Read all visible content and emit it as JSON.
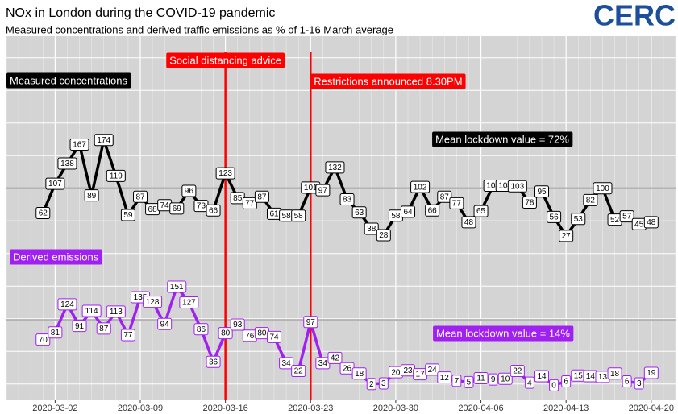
{
  "chart_data": {
    "type": "line",
    "title": "NOx in London during the COVID-19 pandemic",
    "subtitle": "Measured concentrations and derived traffic emissions as % of 1-16 March average",
    "logo": "CERC",
    "x": [
      "2020-03-01",
      "2020-03-02",
      "2020-03-03",
      "2020-03-04",
      "2020-03-05",
      "2020-03-06",
      "2020-03-07",
      "2020-03-08",
      "2020-03-09",
      "2020-03-10",
      "2020-03-11",
      "2020-03-12",
      "2020-03-13",
      "2020-03-14",
      "2020-03-15",
      "2020-03-16",
      "2020-03-17",
      "2020-03-18",
      "2020-03-19",
      "2020-03-20",
      "2020-03-21",
      "2020-03-22",
      "2020-03-23",
      "2020-03-24",
      "2020-03-25",
      "2020-03-26",
      "2020-03-27",
      "2020-03-28",
      "2020-03-29",
      "2020-03-30",
      "2020-03-31",
      "2020-04-01",
      "2020-04-02",
      "2020-04-03",
      "2020-04-04",
      "2020-04-05",
      "2020-04-06",
      "2020-04-07",
      "2020-04-08",
      "2020-04-09",
      "2020-04-10",
      "2020-04-11",
      "2020-04-12",
      "2020-04-13",
      "2020-04-14",
      "2020-04-15",
      "2020-04-16",
      "2020-04-17",
      "2020-04-18",
      "2020-04-19",
      "2020-04-20"
    ],
    "xlim": [
      "2020-02-27",
      "2020-04-22"
    ],
    "xticks": [
      "2020-03-02",
      "2020-03-09",
      "2020-03-16",
      "2020-03-23",
      "2020-03-30",
      "2020-04-06",
      "2020-04-13",
      "2020-04-20"
    ],
    "ylim": [
      -225,
      333
    ],
    "y2lim": [
      -23,
      535
    ],
    "yticks": [
      -200,
      -150,
      -100,
      -50,
      0,
      50,
      100,
      150,
      200,
      250,
      300
    ],
    "reference_line": 100,
    "grid": true,
    "series": [
      {
        "name": "Measured concentrations",
        "color": "#000000",
        "note": "Mean lockdown value = 72%",
        "values": [
          62,
          107,
          138,
          167,
          89,
          174,
          119,
          59,
          87,
          68,
          74,
          69,
          96,
          73,
          66,
          123,
          85,
          77,
          87,
          61,
          58,
          58,
          101,
          97,
          132,
          83,
          63,
          38,
          28,
          58,
          64,
          102,
          66,
          87,
          77,
          48,
          65,
          104,
          104,
          103,
          78,
          95,
          56,
          27,
          53,
          82,
          100,
          52,
          57,
          45,
          48
        ]
      },
      {
        "name": "Derived emissions",
        "color": "#a020f0",
        "axis": "y2",
        "note": "Mean lockdown value = 14%",
        "values": [
          70,
          81,
          124,
          91,
          114,
          87,
          113,
          77,
          135,
          128,
          94,
          151,
          127,
          86,
          36,
          80,
          93,
          76,
          80,
          74,
          34,
          22,
          97,
          34,
          42,
          26,
          18,
          2,
          3,
          20,
          23,
          17,
          24,
          12,
          7,
          5,
          11,
          9,
          10,
          22,
          4,
          14,
          0,
          6,
          15,
          14,
          13,
          18,
          6,
          3,
          19
        ]
      }
    ],
    "annotations": [
      {
        "text": "Social distancing advice",
        "x": "2020-03-16"
      },
      {
        "text": "Restrictions announced 8.30PM",
        "x": "2020-03-23"
      }
    ]
  }
}
